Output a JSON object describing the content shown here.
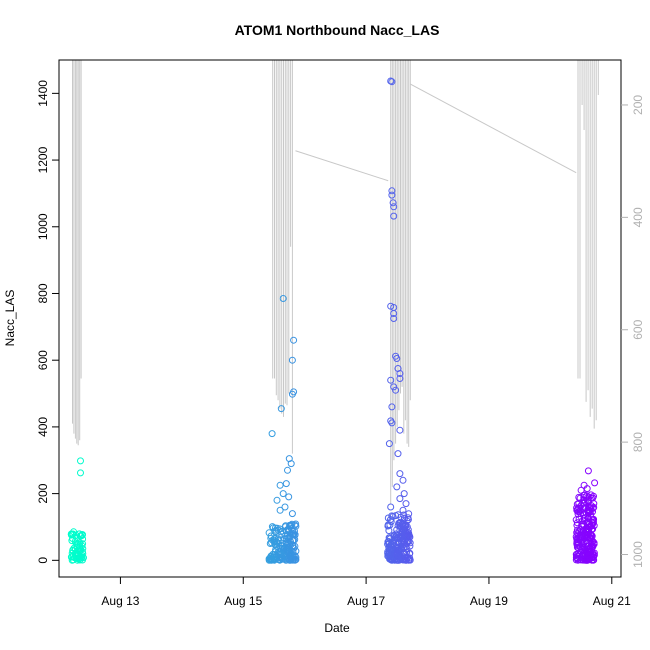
{
  "chart_data": {
    "type": "scatter",
    "title": "ATOM1 Northbound Nacc_LAS",
    "xlabel": "Date",
    "ylabel": "Nacc_LAS",
    "x_ticks": [
      "Aug 13",
      "Aug 15",
      "Aug 17",
      "Aug 19",
      "Aug 21"
    ],
    "x_tick_days": [
      13,
      15,
      17,
      19,
      21
    ],
    "xlim_days": [
      12.0,
      21.15
    ],
    "ylim": [
      -50,
      1500
    ],
    "y_ticks": [
      0,
      200,
      400,
      600,
      800,
      1000,
      1200,
      1400
    ],
    "secondary_axis": {
      "ticks": [
        200,
        400,
        600,
        800,
        1000
      ],
      "inverted": true,
      "color": "#b0b0b0",
      "range": [
        120,
        1040
      ]
    },
    "point_color_range": [
      "#00ffcc",
      "#8800ff"
    ],
    "grid": false,
    "series": [
      {
        "clusters": [
          {
            "x_start": 12.2,
            "x_end": 12.4,
            "y_low": 0,
            "y_high": 90,
            "n": 70,
            "outliers": [
              {
                "x": 12.35,
                "y": 298
              },
              {
                "x": 12.35,
                "y": 262
              }
            ]
          },
          {
            "x_start": 15.42,
            "x_end": 15.86,
            "y_low": 0,
            "y_high": 110,
            "n": 160,
            "outliers": [
              {
                "x": 15.65,
                "y": 785
              },
              {
                "x": 15.82,
                "y": 660
              },
              {
                "x": 15.8,
                "y": 600
              },
              {
                "x": 15.82,
                "y": 505
              },
              {
                "x": 15.8,
                "y": 498
              },
              {
                "x": 15.62,
                "y": 455
              },
              {
                "x": 15.47,
                "y": 380
              },
              {
                "x": 15.75,
                "y": 305
              },
              {
                "x": 15.78,
                "y": 290
              },
              {
                "x": 15.72,
                "y": 270
              },
              {
                "x": 15.6,
                "y": 225
              },
              {
                "x": 15.7,
                "y": 230
              },
              {
                "x": 15.65,
                "y": 200
              },
              {
                "x": 15.74,
                "y": 190
              },
              {
                "x": 15.55,
                "y": 180
              },
              {
                "x": 15.68,
                "y": 160
              },
              {
                "x": 15.6,
                "y": 150
              },
              {
                "x": 15.8,
                "y": 140
              }
            ]
          },
          {
            "x_start": 17.35,
            "x_end": 17.72,
            "y_low": 0,
            "y_high": 140,
            "n": 200,
            "outliers": [
              {
                "x": 17.4,
                "y": 1437
              },
              {
                "x": 17.42,
                "y": 1435
              },
              {
                "x": 17.42,
                "y": 1108
              },
              {
                "x": 17.42,
                "y": 1095
              },
              {
                "x": 17.44,
                "y": 1072
              },
              {
                "x": 17.45,
                "y": 1060
              },
              {
                "x": 17.45,
                "y": 1032
              },
              {
                "x": 17.4,
                "y": 762
              },
              {
                "x": 17.45,
                "y": 758
              },
              {
                "x": 17.45,
                "y": 740
              },
              {
                "x": 17.45,
                "y": 725
              },
              {
                "x": 17.48,
                "y": 612
              },
              {
                "x": 17.5,
                "y": 605
              },
              {
                "x": 17.52,
                "y": 575
              },
              {
                "x": 17.55,
                "y": 560
              },
              {
                "x": 17.55,
                "y": 545
              },
              {
                "x": 17.4,
                "y": 540
              },
              {
                "x": 17.45,
                "y": 520
              },
              {
                "x": 17.48,
                "y": 510
              },
              {
                "x": 17.42,
                "y": 460
              },
              {
                "x": 17.4,
                "y": 418
              },
              {
                "x": 17.42,
                "y": 412
              },
              {
                "x": 17.55,
                "y": 390
              },
              {
                "x": 17.38,
                "y": 350
              },
              {
                "x": 17.52,
                "y": 320
              },
              {
                "x": 17.55,
                "y": 260
              },
              {
                "x": 17.6,
                "y": 240
              },
              {
                "x": 17.5,
                "y": 220
              },
              {
                "x": 17.62,
                "y": 200
              },
              {
                "x": 17.55,
                "y": 185
              },
              {
                "x": 17.65,
                "y": 170
              },
              {
                "x": 17.4,
                "y": 160
              },
              {
                "x": 17.6,
                "y": 150
              }
            ]
          },
          {
            "x_start": 20.42,
            "x_end": 20.72,
            "y_low": 0,
            "y_high": 200,
            "n": 220,
            "outliers": [
              {
                "x": 20.62,
                "y": 268
              },
              {
                "x": 20.72,
                "y": 232
              },
              {
                "x": 20.55,
                "y": 225
              },
              {
                "x": 20.6,
                "y": 215
              },
              {
                "x": 20.5,
                "y": 210
              }
            ]
          }
        ]
      }
    ],
    "line_series": {
      "color": "#c8c8c8",
      "bursts": [
        {
          "x_start": 12.22,
          "x_end": 12.36,
          "bottoms": [
            410,
            380,
            365,
            350,
            345,
            360,
            545
          ]
        },
        {
          "x_start": 15.48,
          "x_end": 15.8,
          "bottoms": [
            545,
            545,
            495,
            480,
            455,
            440,
            430,
            470,
            465,
            500,
            940,
            320
          ]
        },
        {
          "x_start": 17.4,
          "x_end": 17.72,
          "bottoms": [
            170,
            220,
            300,
            350,
            400,
            450,
            500,
            520,
            380,
            420,
            350,
            340,
            480
          ]
        },
        {
          "x_start": 20.45,
          "x_end": 20.78,
          "bottoms": [
            545,
            545,
            1365,
            1290,
            475,
            510,
            430,
            455,
            395,
            420,
            1395
          ]
        }
      ],
      "connectors": [
        {
          "x1": 15.85,
          "y1": 1228,
          "x2": 17.36,
          "y2": 1138
        },
        {
          "x1": 17.72,
          "y1": 1428,
          "x2": 20.42,
          "y2": 1162
        }
      ]
    }
  }
}
